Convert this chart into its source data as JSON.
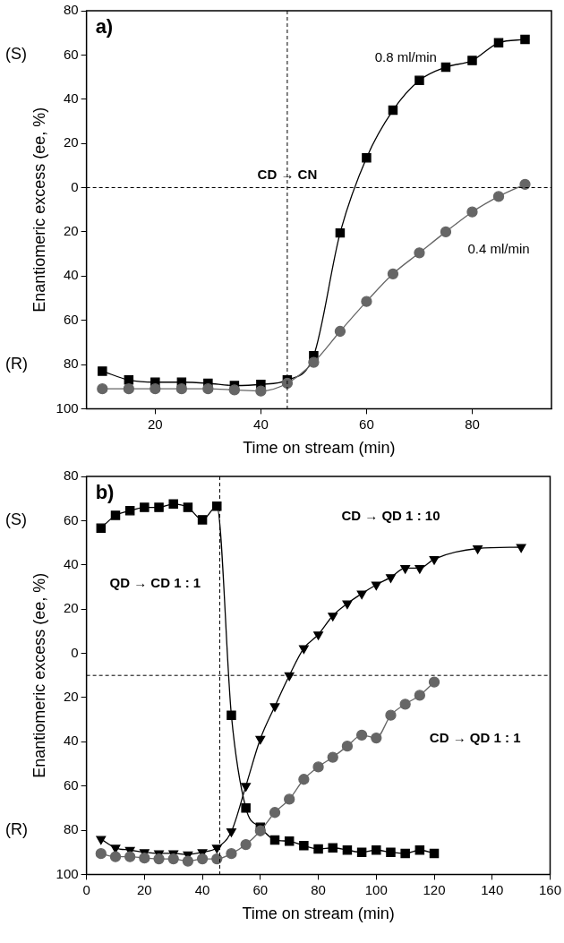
{
  "chart_data": [
    {
      "type": "line",
      "title": "a)",
      "xlabel": "Time on stream (min)",
      "ylabel": "Enantiomeric excess (ee, %)",
      "xlim": [
        7,
        95
      ],
      "xticks": [
        20,
        40,
        60,
        80
      ],
      "ylim": [
        -100,
        80
      ],
      "yticks": [
        {
          "value": -100,
          "label": "100"
        },
        {
          "value": -80,
          "label": "80"
        },
        {
          "value": -60,
          "label": "60"
        },
        {
          "value": -40,
          "label": "40"
        },
        {
          "value": -20,
          "label": "20"
        },
        0,
        20,
        40,
        60,
        80
      ],
      "x": [
        10,
        15,
        20,
        25,
        30,
        35,
        40,
        45,
        50,
        55,
        60,
        65,
        70,
        75,
        80,
        85,
        90
      ],
      "series": [
        {
          "name": "0.8 ml/min",
          "color": "#000000",
          "marker": "square",
          "values": [
            -83,
            -87,
            -88,
            -88,
            -88.5,
            -89.5,
            -89,
            -87,
            -76,
            -20.5,
            13.5,
            35,
            48.5,
            54.5,
            57.5,
            65.5,
            67
          ]
        },
        {
          "name": "0.4 ml/min",
          "color": "#666666",
          "marker": "circle",
          "values": [
            -91,
            -91,
            -91,
            -91,
            -91,
            -91.5,
            -92,
            -88.5,
            -79,
            -65,
            -51.5,
            -39,
            -29.5,
            -20,
            -11,
            -4,
            1.5
          ]
        }
      ],
      "ref_lines": [
        {
          "axis": "x",
          "value": 45,
          "label": "CD → CN",
          "line_style": "dashed"
        },
        {
          "axis": "y",
          "value": 0,
          "line_style": "dashed"
        }
      ],
      "annotations": [
        "(S)",
        "(R)"
      ],
      "legend": false
    },
    {
      "type": "line",
      "title": "b)",
      "xlabel": "Time on stream (min)",
      "ylabel": "Enantiomeric excess (ee, %)",
      "xlim": [
        0,
        160
      ],
      "xticks": [
        0,
        20,
        40,
        60,
        80,
        100,
        120,
        140,
        160
      ],
      "ylim": [
        -100,
        80
      ],
      "yticks": [
        {
          "value": -100,
          "label": "100"
        },
        {
          "value": -80,
          "label": "80"
        },
        {
          "value": -60,
          "label": "60"
        },
        {
          "value": -40,
          "label": "40"
        },
        {
          "value": -20,
          "label": "20"
        },
        0,
        20,
        40,
        60,
        80
      ],
      "series": [
        {
          "name": "QD → CD 1 : 1",
          "color": "#000000",
          "marker": "square",
          "x": [
            5,
            10,
            15,
            20,
            25,
            30,
            35,
            40,
            45,
            50,
            55,
            60,
            65,
            70,
            75,
            80,
            85,
            90,
            95,
            100,
            105,
            110,
            115,
            120
          ],
          "values": [
            56.6,
            62.4,
            64.5,
            66,
            66,
            67.5,
            66,
            60.4,
            66.5,
            -28,
            -70,
            -78.7,
            -84.4,
            -85,
            -87,
            -88.5,
            -88,
            -89,
            -90,
            -89,
            -90,
            -90.5,
            -89,
            -90.5
          ]
        },
        {
          "name": "CD → QD 1 : 10",
          "color": "#000000",
          "marker": "triangle",
          "x": [
            5,
            10,
            15,
            20,
            25,
            30,
            35,
            40,
            45,
            50,
            55,
            60,
            65,
            70,
            75,
            80,
            85,
            90,
            95,
            100,
            105,
            110,
            115,
            120,
            135,
            150
          ],
          "values": [
            -84,
            -88,
            -89,
            -90,
            -90.5,
            -90.5,
            -91,
            -90,
            -88,
            -80.6,
            -60,
            -38.7,
            -24,
            -10,
            2.3,
            8.5,
            17,
            22.5,
            27,
            31,
            34.4,
            38.5,
            38.5,
            42.6,
            47.4,
            48
          ]
        },
        {
          "name": "CD → QD 1 : 1",
          "color": "#666666",
          "marker": "circle",
          "x": [
            5,
            10,
            15,
            20,
            25,
            30,
            35,
            40,
            45,
            50,
            55,
            60,
            65,
            70,
            75,
            80,
            85,
            90,
            95,
            100,
            105,
            110,
            115,
            120
          ],
          "values": [
            -90.6,
            -92,
            -92,
            -92.6,
            -93,
            -93,
            -94,
            -93,
            -93,
            -90.6,
            -86.5,
            -80.3,
            -72,
            -66,
            -57,
            -51.4,
            -47,
            -42,
            -37,
            -38.3,
            -28,
            -23,
            -19,
            -13
          ]
        }
      ],
      "ref_lines": [
        {
          "axis": "x",
          "value": 46,
          "line_style": "dashed"
        },
        {
          "axis": "y",
          "value": -10,
          "line_style": "dashed"
        }
      ],
      "annotations": [
        "(S)",
        "(R)"
      ],
      "legend": false
    }
  ]
}
